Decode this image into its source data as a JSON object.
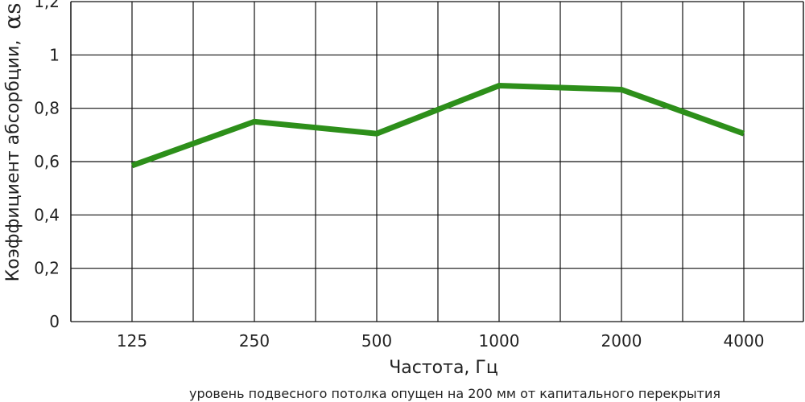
{
  "chart_data": {
    "type": "line",
    "categories": [
      "125",
      "250",
      "500",
      "1000",
      "2000",
      "4000"
    ],
    "series": [
      {
        "values": [
          0.585,
          0.75,
          0.705,
          0.885,
          0.87,
          0.705
        ],
        "color": "#2d8f1a"
      }
    ],
    "xlabel": "Частота, Гц",
    "ylabel": "Коэффициент абсорбции,",
    "ylabel_symbol": "αs",
    "yticks": [
      "0",
      "0,2",
      "0,4",
      "0,6",
      "0,8",
      "1",
      "1,2"
    ],
    "ylim": [
      0,
      1.2
    ],
    "grid": true,
    "footnote": "уровень подвесного потолка опущен на 200 мм от капитального перекрытия"
  }
}
